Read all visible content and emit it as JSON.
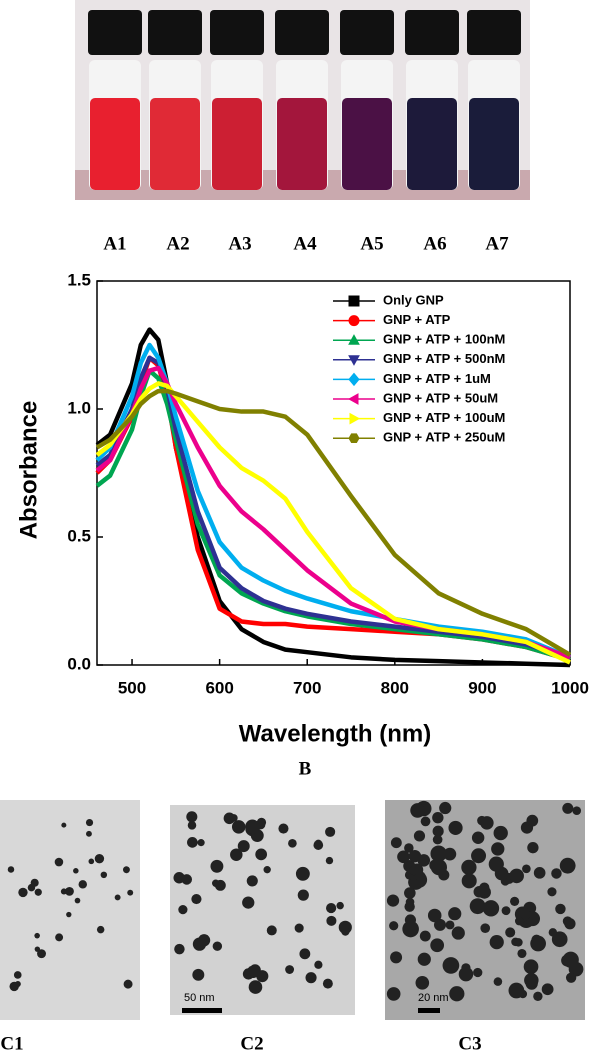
{
  "figure": {
    "vial_labels": [
      "A1",
      "A2",
      "A3",
      "A4",
      "A5",
      "A6",
      "A7"
    ],
    "panel_b": "B",
    "tem_labels": [
      "C1",
      "C2",
      "C3"
    ],
    "scale_bars": [
      "50 nm",
      "20 nm"
    ]
  },
  "chart_data": {
    "type": "line",
    "xlabel": "Wavelength (nm)",
    "ylabel": "Absorbance",
    "x": [
      460,
      475,
      500,
      510,
      520,
      530,
      540,
      550,
      575,
      600,
      625,
      650,
      675,
      700,
      750,
      800,
      850,
      900,
      950,
      1000
    ],
    "xlim": [
      460,
      1000
    ],
    "ylim": [
      0,
      1.5
    ],
    "xticks": [
      500,
      600,
      700,
      800,
      900,
      1000
    ],
    "yticks": [
      {
        "value": 0,
        "label": "0.0"
      },
      {
        "value": 0.5,
        "label": "0.5"
      },
      {
        "value": 1,
        "label": "1.0"
      },
      {
        "value": 1.5,
        "label": "1.5"
      }
    ],
    "legend": "upper right",
    "series": [
      {
        "name": "Only GNP",
        "color": "#000000",
        "marker": "square",
        "values": [
          0.86,
          0.9,
          1.1,
          1.25,
          1.31,
          1.27,
          1.1,
          0.85,
          0.5,
          0.25,
          0.14,
          0.09,
          0.06,
          0.05,
          0.03,
          0.02,
          0.015,
          0.01,
          0.005,
          0.0
        ]
      },
      {
        "name": "GNP + ATP",
        "color": "#ff0000",
        "marker": "circle",
        "values": [
          0.75,
          0.8,
          0.97,
          1.1,
          1.2,
          1.17,
          1.05,
          0.85,
          0.45,
          0.22,
          0.17,
          0.16,
          0.16,
          0.15,
          0.14,
          0.13,
          0.12,
          0.1,
          0.07,
          0.02
        ]
      },
      {
        "name": "GNP + ATP + 100nM",
        "color": "#00a651",
        "marker": "triangle-up",
        "values": [
          0.7,
          0.74,
          0.92,
          1.05,
          1.15,
          1.12,
          1.02,
          0.88,
          0.55,
          0.35,
          0.28,
          0.24,
          0.21,
          0.19,
          0.16,
          0.14,
          0.12,
          0.1,
          0.07,
          0.02
        ]
      },
      {
        "name": "GNP + ATP + 500nM",
        "color": "#2e3192",
        "marker": "triangle-down",
        "values": [
          0.78,
          0.82,
          1.0,
          1.12,
          1.2,
          1.18,
          1.08,
          0.92,
          0.6,
          0.38,
          0.3,
          0.25,
          0.22,
          0.2,
          0.17,
          0.15,
          0.13,
          0.11,
          0.08,
          0.03
        ]
      },
      {
        "name": "GNP + ATP + 1uM",
        "color": "#00aeef",
        "marker": "diamond",
        "values": [
          0.8,
          0.85,
          1.05,
          1.18,
          1.25,
          1.2,
          1.1,
          0.97,
          0.68,
          0.48,
          0.38,
          0.33,
          0.29,
          0.26,
          0.21,
          0.18,
          0.15,
          0.13,
          0.1,
          0.03
        ]
      },
      {
        "name": "GNP + ATP + 50uM",
        "color": "#ec008c",
        "marker": "triangle-left",
        "values": [
          0.76,
          0.8,
          0.98,
          1.08,
          1.15,
          1.16,
          1.1,
          1.02,
          0.85,
          0.7,
          0.6,
          0.53,
          0.45,
          0.37,
          0.24,
          0.17,
          0.14,
          0.12,
          0.09,
          0.03
        ]
      },
      {
        "name": "GNP + ATP + 100uM",
        "color": "#ffff00",
        "marker": "triangle-right",
        "values": [
          0.82,
          0.86,
          0.98,
          1.04,
          1.08,
          1.1,
          1.09,
          1.05,
          0.95,
          0.85,
          0.77,
          0.72,
          0.65,
          0.52,
          0.3,
          0.18,
          0.14,
          0.12,
          0.09,
          0.01
        ]
      },
      {
        "name": "GNP + ATP + 250uM",
        "color": "#808000",
        "marker": "hexagon",
        "values": [
          0.85,
          0.88,
          0.97,
          1.02,
          1.05,
          1.07,
          1.07,
          1.06,
          1.03,
          1.0,
          0.99,
          0.99,
          0.97,
          0.9,
          0.66,
          0.43,
          0.28,
          0.2,
          0.14,
          0.04
        ]
      }
    ]
  }
}
